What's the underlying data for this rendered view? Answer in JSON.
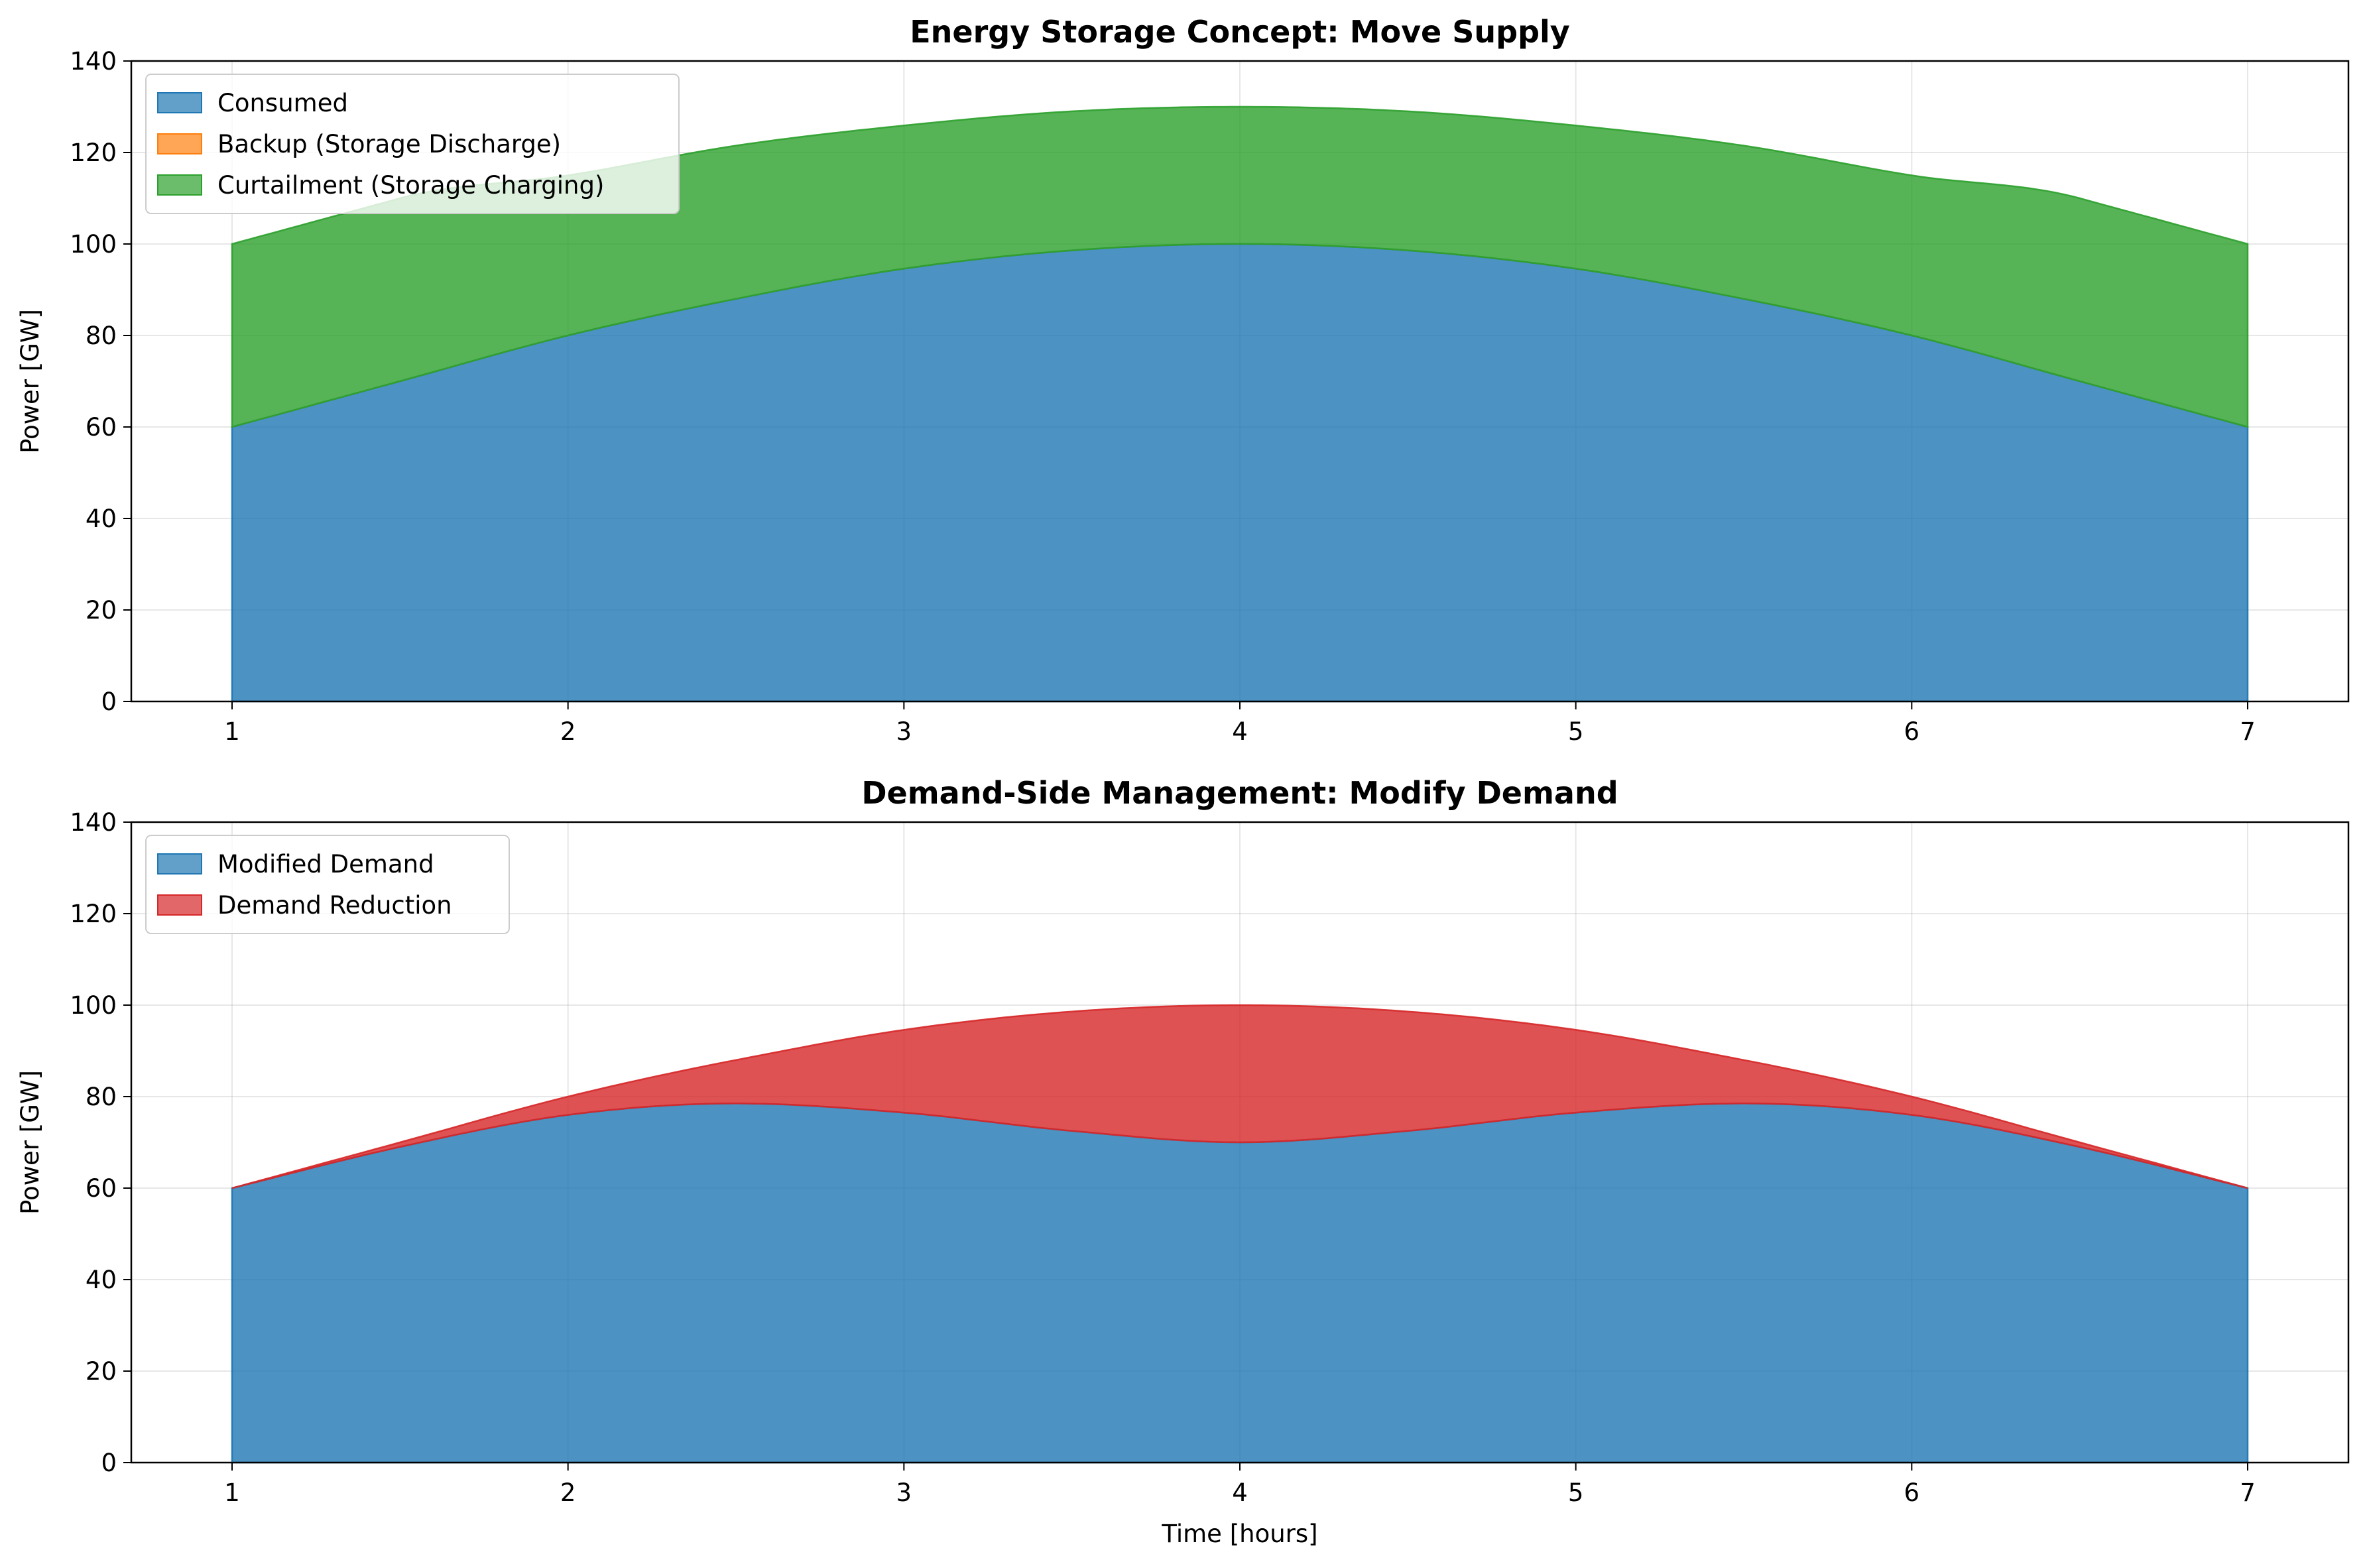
{
  "chart_data": [
    {
      "type": "area",
      "stacked": true,
      "title": "Energy Storage Concept: Move Supply",
      "xlabel": "",
      "ylabel": "Power [GW]",
      "xlim": [
        0.7,
        7.3
      ],
      "ylim": [
        0,
        140
      ],
      "xticks": [
        1,
        2,
        3,
        4,
        5,
        6,
        7
      ],
      "yticks": [
        0,
        20,
        40,
        60,
        80,
        100,
        120,
        140
      ],
      "grid": true,
      "legend_position": "upper-left",
      "x": [
        1,
        1.5,
        2,
        2.5,
        3,
        3.5,
        4,
        4.5,
        5,
        5.5,
        6,
        6.5,
        7
      ],
      "series": [
        {
          "name": "Consumed",
          "color": "#1f77b4",
          "values": [
            60,
            70,
            80,
            88,
            94.6,
            98.6,
            100,
            98.6,
            94.6,
            88,
            80,
            70,
            60
          ]
        },
        {
          "name": "Backup (Storage Discharge)",
          "color": "#ff7f0e",
          "values": [
            0,
            0,
            0,
            0,
            0,
            0,
            0,
            0,
            0,
            0,
            0,
            0,
            0
          ]
        },
        {
          "name": "Curtailment (Storage Charging)",
          "color": "#2ca02c",
          "values": [
            40,
            40,
            35,
            33.5,
            31.3,
            30.4,
            30,
            30.4,
            31.3,
            33.5,
            35,
            40,
            40
          ]
        }
      ]
    },
    {
      "type": "area",
      "stacked": true,
      "title": "Demand-Side Management: Modify Demand",
      "xlabel": "Time [hours]",
      "ylabel": "Power [GW]",
      "xlim": [
        0.7,
        7.3
      ],
      "ylim": [
        0,
        140
      ],
      "xticks": [
        1,
        2,
        3,
        4,
        5,
        6,
        7
      ],
      "yticks": [
        0,
        20,
        40,
        60,
        80,
        100,
        120,
        140
      ],
      "grid": true,
      "legend_position": "upper-left",
      "x": [
        1,
        1.5,
        2,
        2.5,
        3,
        3.5,
        4,
        4.5,
        5,
        5.5,
        6,
        6.5,
        7
      ],
      "series": [
        {
          "name": "Modified Demand",
          "color": "#1f77b4",
          "values": [
            60,
            69,
            76,
            78.5,
            76.5,
            72.5,
            70,
            72.5,
            76.5,
            78.5,
            76,
            69,
            60
          ]
        },
        {
          "name": "Demand Reduction",
          "color": "#d62728",
          "values": [
            0,
            1,
            4,
            9.5,
            18.1,
            26.1,
            30,
            26.1,
            18.1,
            9.5,
            4,
            1,
            0
          ]
        }
      ]
    }
  ]
}
